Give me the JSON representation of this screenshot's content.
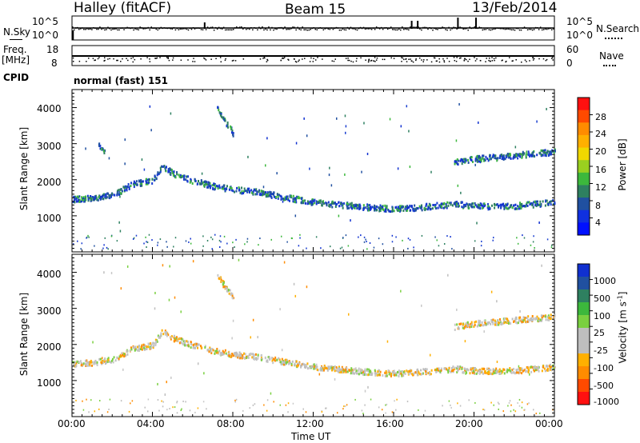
{
  "header": {
    "station": "Halley (fitACF)",
    "beam": "Beam 15",
    "date": "13/Feb/2014"
  },
  "top_panels": {
    "nsky_label": "N.Sky",
    "nsearch_label": "N.Search",
    "noise_ticks_left": [
      "10^5",
      "10^0"
    ],
    "noise_ticks_right": [
      "10^5",
      "10^0"
    ],
    "freq_label": "Freq.",
    "freq_unit": "[MHz]",
    "freq_ticks": [
      "18",
      "8"
    ],
    "nave_label": "Nave",
    "nave_ticks": [
      "60",
      "0"
    ],
    "cpid_label": "CPID",
    "cpid_value": "normal (fast) 151"
  },
  "axes": {
    "xlabel": "Time UT",
    "ylabel": "Slant Range [km]",
    "xticks": [
      "00:00",
      "04:00",
      "08:00",
      "12:00",
      "16:00",
      "20:00",
      "00:00"
    ],
    "yticks": [
      "4000",
      "3000",
      "2000",
      "1000"
    ]
  },
  "colorbars": {
    "power": {
      "label": "Power [dB]",
      "ticks": [
        "28",
        "24",
        "20",
        "16",
        "12",
        "8",
        "4"
      ],
      "colors": [
        "#ff1010",
        "#ff4a00",
        "#ff8c00",
        "#ffb000",
        "#f0d800",
        "#9ad020",
        "#3cb83c",
        "#2e8060",
        "#2050a0",
        "#1030e0",
        "#0010ff"
      ]
    },
    "velocity": {
      "label": "Velocity [m s",
      "label_sup": "-1",
      "label_end": "]",
      "ticks": [
        "1000",
        "500",
        "100",
        "25",
        "-25",
        "-100",
        "-500",
        "-1000"
      ],
      "colors": [
        "#1030d0",
        "#2050a0",
        "#2e8060",
        "#3cb83c",
        "#7ad040",
        "#bebebe",
        "#bebebe",
        "#ffb000",
        "#ff8c00",
        "#ff4a00",
        "#ff1010"
      ]
    }
  },
  "chart_data": [
    {
      "type": "scatter",
      "title": "Power",
      "x_units": "hours UT",
      "xlim": [
        0,
        24
      ],
      "ylim": [
        0,
        4500
      ],
      "bands": [
        {
          "name": "main echo band",
          "points": [
            [
              0,
              1480
            ],
            [
              1,
              1520
            ],
            [
              2,
              1600
            ],
            [
              3,
              1900
            ],
            [
              4,
              2000
            ],
            [
              4.5,
              2400
            ],
            [
              5,
              2200
            ],
            [
              6,
              2000
            ],
            [
              7,
              1850
            ],
            [
              8,
              1750
            ],
            [
              9,
              1700
            ],
            [
              10,
              1600
            ],
            [
              11,
              1500
            ],
            [
              12,
              1400
            ],
            [
              13,
              1350
            ],
            [
              14,
              1300
            ],
            [
              15,
              1250
            ],
            [
              16,
              1220
            ],
            [
              17,
              1250
            ],
            [
              18,
              1300
            ],
            [
              19,
              1350
            ],
            [
              20,
              1300
            ],
            [
              21,
              1280
            ],
            [
              22,
              1300
            ],
            [
              23,
              1350
            ],
            [
              24,
              1400
            ]
          ]
        },
        {
          "name": "upper band",
          "points": [
            [
              19,
              2500
            ],
            [
              20,
              2600
            ],
            [
              21,
              2650
            ],
            [
              22,
              2700
            ],
            [
              23,
              2750
            ],
            [
              24,
              2800
            ]
          ]
        },
        {
          "name": "feature 07:30",
          "points": [
            [
              7.2,
              4000
            ],
            [
              7.5,
              3700
            ],
            [
              7.8,
              3500
            ],
            [
              8,
              3300
            ]
          ]
        },
        {
          "name": "feature 01:30",
          "points": [
            [
              1.3,
              3000
            ],
            [
              1.6,
              2800
            ]
          ]
        }
      ]
    },
    {
      "type": "scatter",
      "title": "Velocity",
      "x_units": "hours UT",
      "xlim": [
        0,
        24
      ],
      "ylim": [
        0,
        4500
      ],
      "bands": [
        {
          "name": "main echo band",
          "points": [
            [
              0,
              1480
            ],
            [
              1,
              1520
            ],
            [
              2,
              1600
            ],
            [
              3,
              1900
            ],
            [
              4,
              2000
            ],
            [
              4.5,
              2400
            ],
            [
              5,
              2200
            ],
            [
              6,
              2000
            ],
            [
              7,
              1850
            ],
            [
              8,
              1750
            ],
            [
              9,
              1700
            ],
            [
              10,
              1600
            ],
            [
              11,
              1500
            ],
            [
              12,
              1400
            ],
            [
              13,
              1350
            ],
            [
              14,
              1300
            ],
            [
              15,
              1250
            ],
            [
              16,
              1220
            ],
            [
              17,
              1250
            ],
            [
              18,
              1300
            ],
            [
              19,
              1350
            ],
            [
              20,
              1300
            ],
            [
              21,
              1280
            ],
            [
              22,
              1300
            ],
            [
              23,
              1350
            ],
            [
              24,
              1400
            ]
          ]
        },
        {
          "name": "upper band",
          "points": [
            [
              19,
              2500
            ],
            [
              20,
              2600
            ],
            [
              21,
              2650
            ],
            [
              22,
              2700
            ],
            [
              23,
              2750
            ],
            [
              24,
              2800
            ]
          ]
        },
        {
          "name": "feature 07:30",
          "points": [
            [
              7.2,
              4000
            ],
            [
              7.5,
              3700
            ],
            [
              7.8,
              3500
            ],
            [
              8,
              3300
            ]
          ]
        }
      ]
    }
  ]
}
